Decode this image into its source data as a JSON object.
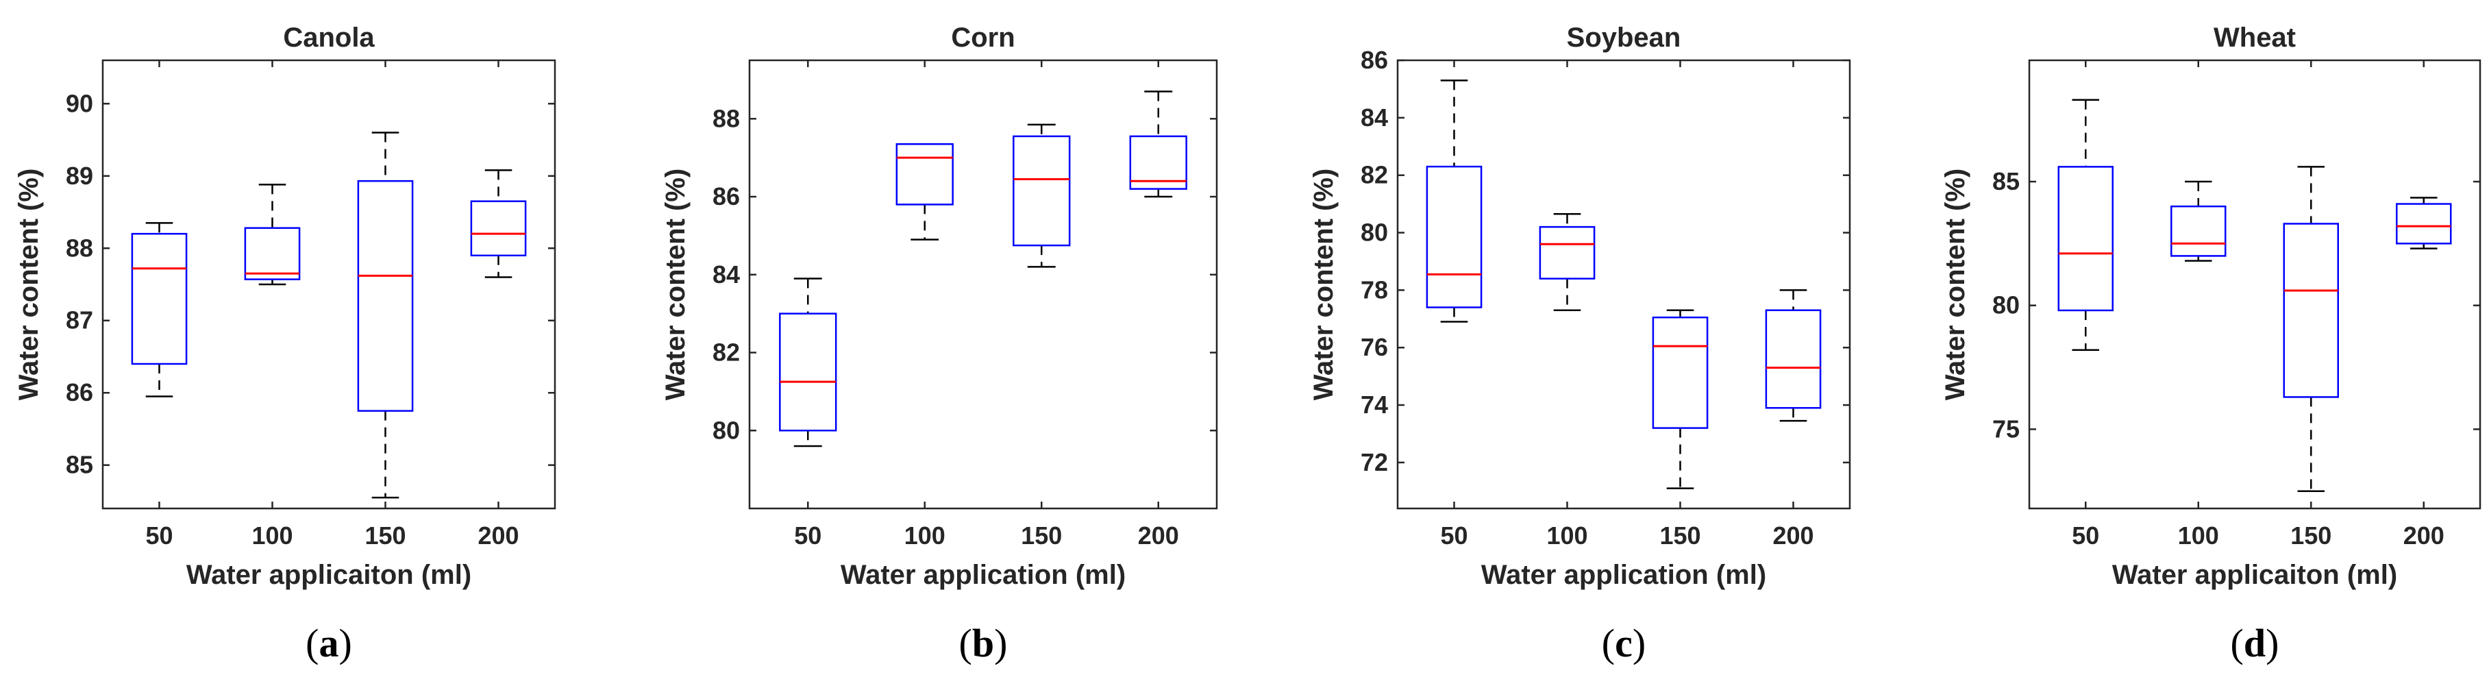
{
  "chart_data": [
    {
      "type": "box",
      "panel_label": "a",
      "title": "Canola",
      "xlabel": "Water applicaiton (ml)",
      "ylabel": "Water content (%)",
      "categories": [
        "50",
        "100",
        "150",
        "200"
      ],
      "ylim": [
        84.4,
        90.6
      ],
      "yticks": [
        85,
        86,
        87,
        88,
        89,
        90
      ],
      "boxes": [
        {
          "whislo": 85.95,
          "q1": 86.4,
          "med": 87.72,
          "q3": 88.2,
          "whishi": 88.35
        },
        {
          "whislo": 87.5,
          "q1": 87.57,
          "med": 87.65,
          "q3": 88.28,
          "whishi": 88.88
        },
        {
          "whislo": 84.55,
          "q1": 85.75,
          "med": 87.62,
          "q3": 88.93,
          "whishi": 89.6
        },
        {
          "whislo": 87.6,
          "q1": 87.9,
          "med": 88.2,
          "q3": 88.65,
          "whishi": 89.08
        }
      ]
    },
    {
      "type": "box",
      "panel_label": "b",
      "title": "Corn",
      "xlabel": "Water application (ml)",
      "ylabel": "Water content (%)",
      "categories": [
        "50",
        "100",
        "150",
        "200"
      ],
      "ylim": [
        78.0,
        89.5
      ],
      "yticks": [
        80,
        82,
        84,
        86,
        88
      ],
      "boxes": [
        {
          "whislo": 79.6,
          "q1": 80.0,
          "med": 81.25,
          "q3": 83.0,
          "whishi": 83.9
        },
        {
          "whislo": 84.9,
          "q1": 85.8,
          "med": 87.0,
          "q3": 87.35,
          "whishi": 87.35
        },
        {
          "whislo": 84.2,
          "q1": 84.75,
          "med": 86.45,
          "q3": 87.55,
          "whishi": 87.85
        },
        {
          "whislo": 86.0,
          "q1": 86.2,
          "med": 86.4,
          "q3": 87.55,
          "whishi": 88.7
        }
      ]
    },
    {
      "type": "box",
      "panel_label": "c",
      "title": "Soybean",
      "xlabel": "Water application (ml)",
      "ylabel": "Water content (%)",
      "categories": [
        "50",
        "100",
        "150",
        "200"
      ],
      "ylim": [
        70.4,
        86.0
      ],
      "yticks": [
        72,
        74,
        76,
        78,
        80,
        82,
        84,
        86
      ],
      "boxes": [
        {
          "whislo": 76.9,
          "q1": 77.4,
          "med": 78.55,
          "q3": 82.3,
          "whishi": 85.3
        },
        {
          "whislo": 77.3,
          "q1": 78.4,
          "med": 79.6,
          "q3": 80.2,
          "whishi": 80.65
        },
        {
          "whislo": 71.1,
          "q1": 73.2,
          "med": 76.05,
          "q3": 77.05,
          "whishi": 77.3
        },
        {
          "whislo": 73.45,
          "q1": 73.9,
          "med": 75.3,
          "q3": 77.3,
          "whishi": 78.0
        }
      ]
    },
    {
      "type": "box",
      "panel_label": "d",
      "title": "Wheat",
      "xlabel": "Water applicaiton (ml)",
      "ylabel": "Water content (%)",
      "categories": [
        "50",
        "100",
        "150",
        "200"
      ],
      "ylim": [
        71.8,
        89.9
      ],
      "yticks": [
        75,
        80,
        85
      ],
      "boxes": [
        {
          "whislo": 78.2,
          "q1": 79.8,
          "med": 82.1,
          "q3": 85.6,
          "whishi": 88.3
        },
        {
          "whislo": 81.8,
          "q1": 82.0,
          "med": 82.5,
          "q3": 84.0,
          "whishi": 85.0
        },
        {
          "whislo": 72.5,
          "q1": 76.3,
          "med": 80.6,
          "q3": 83.3,
          "whishi": 85.6
        },
        {
          "whislo": 82.3,
          "q1": 82.5,
          "med": 83.2,
          "q3": 84.1,
          "whishi": 84.35
        }
      ]
    }
  ],
  "style": {
    "box_color": "#0000ff",
    "median_color": "#ff0000",
    "whisker_color": "#000000",
    "axis_color": "#262626"
  }
}
